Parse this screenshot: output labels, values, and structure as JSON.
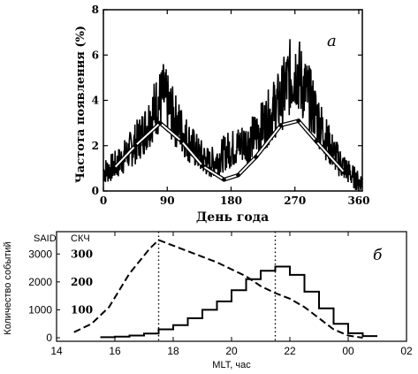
{
  "chart_data": [
    {
      "panel_label": "а",
      "type": "line",
      "xlabel": "День года",
      "ylabel": "Частота появления (%)",
      "xlim": [
        0,
        365
      ],
      "ylim": [
        0,
        8
      ],
      "xticks": [
        "0",
        "90",
        "180",
        "270",
        "360"
      ],
      "yticks": [
        "0",
        "2",
        "4",
        "6",
        "8"
      ],
      "series": [
        {
          "style": "noisy-black-line",
          "x": [
            5,
            20,
            35,
            50,
            60,
            70,
            78,
            85,
            92,
            100,
            110,
            120,
            135,
            150,
            165,
            175,
            185,
            195,
            205,
            215,
            230,
            240,
            250,
            258,
            265,
            272,
            280,
            290,
            300,
            310,
            320,
            335,
            350,
            360
          ],
          "y": [
            0.9,
            1.2,
            1.7,
            2.3,
            2.8,
            3.5,
            3.9,
            4.2,
            3.7,
            3.2,
            2.7,
            2.2,
            1.6,
            1.2,
            1.5,
            1.8,
            1.9,
            2.1,
            2.2,
            2.5,
            3.1,
            3.6,
            4.0,
            4.7,
            5.1,
            5.4,
            4.7,
            4.1,
            3.4,
            2.6,
            1.9,
            1.2,
            0.7,
            0.4
          ]
        },
        {
          "style": "white-line-with-points",
          "x": [
            15,
            45,
            80,
            110,
            140,
            170,
            190,
            215,
            250,
            275,
            300,
            340
          ],
          "y": [
            1.0,
            2.0,
            3.0,
            2.2,
            1.1,
            0.5,
            0.7,
            1.5,
            2.9,
            3.1,
            2.2,
            0.8
          ]
        }
      ]
    },
    {
      "panel_label": "б",
      "type": "line",
      "xlabel": "MLT, час",
      "ylabel": "Количество событий",
      "left_axis_title": "SAID",
      "right_axis_title": "СКЧ",
      "xticks": [
        "14",
        "16",
        "18",
        "20",
        "22",
        "00",
        "02"
      ],
      "yticks": [
        "0",
        "1000",
        "2000",
        "3000"
      ],
      "right_yticks": [
        "100",
        "200",
        "300"
      ],
      "xlim": [
        14,
        26
      ],
      "ylim": [
        0,
        3800
      ],
      "right_ylim": [
        0,
        380
      ],
      "vlines": [
        17.5,
        21.5
      ],
      "series": [
        {
          "style": "dashed",
          "axis": "right",
          "x": [
            14.6,
            15.2,
            15.8,
            16.5,
            17.2,
            17.5,
            18.0,
            18.5,
            19.0,
            19.5,
            20.0,
            20.5,
            21.0,
            21.5,
            22.0,
            22.5,
            23.0,
            23.5,
            24.0,
            24.5
          ],
          "y": [
            20,
            50,
            110,
            230,
            320,
            350,
            330,
            310,
            290,
            270,
            245,
            220,
            185,
            160,
            140,
            110,
            70,
            30,
            8,
            0
          ]
        },
        {
          "style": "histogram",
          "axis": "left",
          "bin_edges": [
            15.5,
            16.0,
            16.5,
            17.0,
            17.5,
            18.0,
            18.5,
            19.0,
            19.5,
            20.0,
            20.5,
            21.0,
            21.5,
            22.0,
            22.5,
            23.0,
            23.5,
            24.0,
            24.5,
            25.0
          ],
          "values": [
            20,
            40,
            80,
            150,
            300,
            450,
            700,
            1000,
            1300,
            1700,
            2100,
            2400,
            2550,
            2250,
            1650,
            1050,
            500,
            160,
            60
          ]
        }
      ]
    }
  ]
}
